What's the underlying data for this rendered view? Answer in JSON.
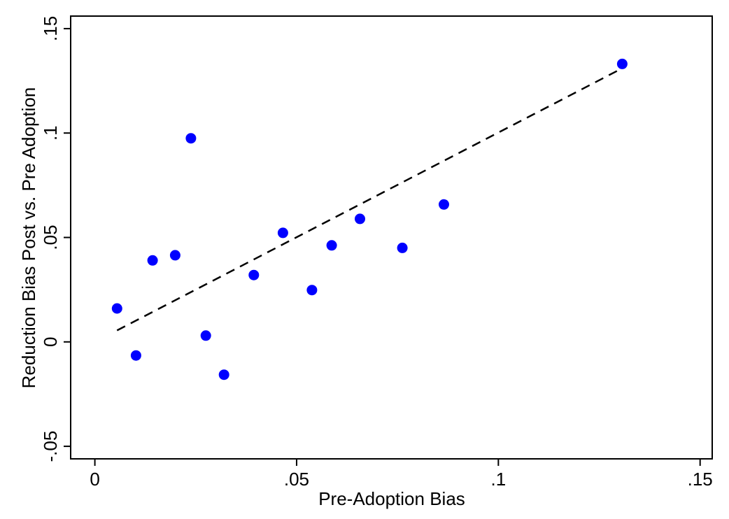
{
  "chart_data": {
    "type": "scatter",
    "title": "",
    "xlabel": "Pre-Adoption Bias",
    "ylabel": "Reduction Bias Post vs. Pre Adoption",
    "xlim": [
      -0.006,
      0.153
    ],
    "ylim": [
      -0.056,
      0.156
    ],
    "xticks": [
      0,
      0.05,
      0.1,
      0.15
    ],
    "xtick_labels": [
      "0",
      ".05",
      ".1",
      ".15"
    ],
    "yticks": [
      -0.05,
      0,
      0.05,
      0.1,
      0.15
    ],
    "ytick_labels": [
      "-.05",
      "0",
      ".05",
      ".1",
      ".15"
    ],
    "grid": false,
    "legend": "none",
    "series": [
      {
        "points": [
          {
            "x": 0.0055,
            "y": 0.016
          },
          {
            "x": 0.0102,
            "y": -0.0065
          },
          {
            "x": 0.0143,
            "y": 0.039
          },
          {
            "x": 0.0199,
            "y": 0.0415
          },
          {
            "x": 0.0238,
            "y": 0.0975
          },
          {
            "x": 0.0275,
            "y": 0.003
          },
          {
            "x": 0.032,
            "y": -0.0157
          },
          {
            "x": 0.0394,
            "y": 0.032
          },
          {
            "x": 0.0466,
            "y": 0.0522
          },
          {
            "x": 0.0538,
            "y": 0.0248
          },
          {
            "x": 0.0587,
            "y": 0.0462
          },
          {
            "x": 0.0657,
            "y": 0.0589
          },
          {
            "x": 0.0762,
            "y": 0.045
          },
          {
            "x": 0.0865,
            "y": 0.0658
          },
          {
            "x": 0.1307,
            "y": 0.1331
          }
        ],
        "color": "#0000ff",
        "marker": "filled-circle"
      }
    ],
    "fit_line": {
      "style": "dashed",
      "color": "#000000",
      "x": [
        0.0055,
        0.1307
      ],
      "y": [
        0.0055,
        0.131
      ]
    }
  }
}
